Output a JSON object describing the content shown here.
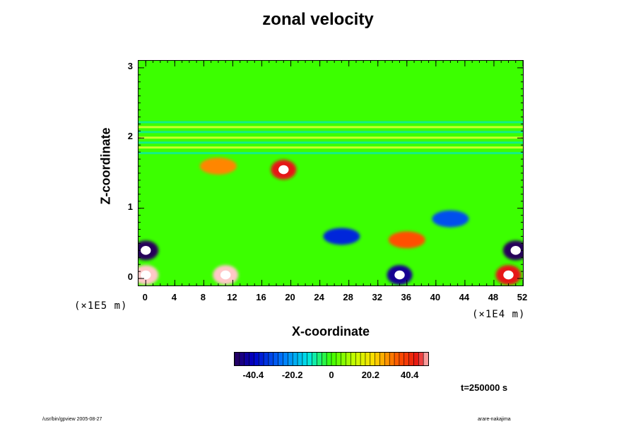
{
  "chart_data": {
    "type": "heatmap",
    "title": "zonal velocity",
    "xlabel": "X-coordinate",
    "ylabel": "Z-coordinate",
    "x_scale_note": "(×1E4 m)",
    "y_scale_note": "(×1E5 m)",
    "xlim": [
      -1,
      52
    ],
    "ylim": [
      -0.1,
      3.1
    ],
    "x_ticks": [
      "0",
      "4",
      "8",
      "12",
      "16",
      "20",
      "24",
      "28",
      "32",
      "36",
      "40",
      "44",
      "48",
      "52"
    ],
    "y_ticks": [
      "0",
      "1",
      "2",
      "3"
    ],
    "colorbar": {
      "ticks": [
        "-40.4",
        "-20.2",
        "0",
        "20.2",
        "40.4"
      ],
      "range": [
        -50,
        50
      ]
    },
    "time_label": "t=250000 s",
    "colors": {
      "background_field": "#33ff00",
      "strong_negative": "#2200aa",
      "strong_positive": "#ee2200"
    },
    "features": [
      {
        "x": 10,
        "z": 1.6,
        "value": 30,
        "note": "positive band"
      },
      {
        "x": 19,
        "z": 1.55,
        "value": 45
      },
      {
        "x": 36,
        "z": 0.55,
        "value": 35
      },
      {
        "x": 42,
        "z": 0.85,
        "value": -30
      },
      {
        "x": 27,
        "z": 0.6,
        "value": -35
      },
      {
        "x": 0,
        "z": 0.4,
        "value": -50
      },
      {
        "x": 51,
        "z": 0.4,
        "value": -50
      },
      {
        "x": 0,
        "z": 0.05,
        "value": 50
      },
      {
        "x": 11,
        "z": 0.05,
        "value": 50
      },
      {
        "x": 35,
        "z": 0.05,
        "value": -45
      },
      {
        "x": 50,
        "z": 0.05,
        "value": 45
      }
    ]
  },
  "footer": {
    "left": "/usr/bin/gpview 2005-08-27",
    "right": "arare-nakajima"
  }
}
